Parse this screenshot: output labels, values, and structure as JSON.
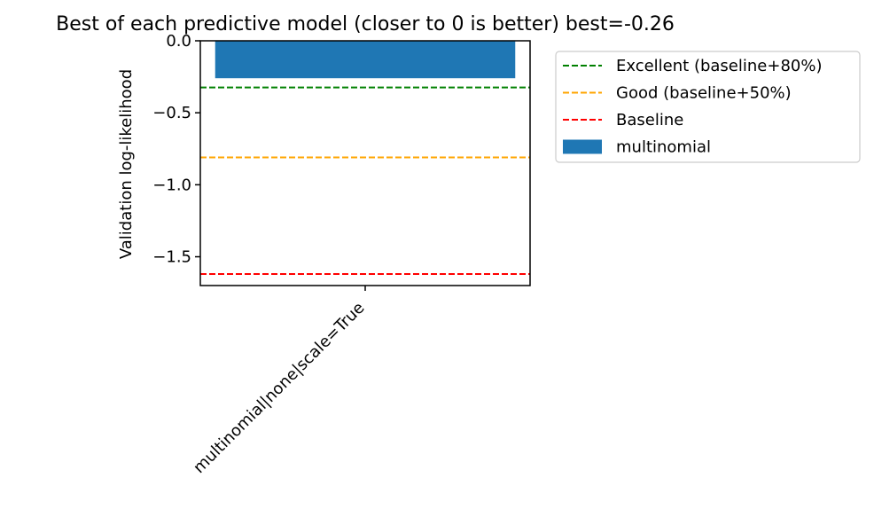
{
  "chart_data": {
    "type": "bar",
    "title": "Best of each predictive model (closer to 0 is better) best=-0.26",
    "xlabel": "",
    "ylabel": "Validation log-likelihood",
    "categories": [
      "multinomial|none|scale=True"
    ],
    "series": [
      {
        "name": "multinomial",
        "values": [
          -0.26
        ],
        "color": "#1f77b4"
      }
    ],
    "reference_lines": [
      {
        "name": "Excellent (baseline+80%)",
        "value": -0.324,
        "color": "#008000",
        "style": "dashed"
      },
      {
        "name": "Good (baseline+50%)",
        "value": -0.81,
        "color": "#ffa500",
        "style": "dashed"
      },
      {
        "name": "Baseline",
        "value": -1.62,
        "color": "#ff0000",
        "style": "dashed"
      }
    ],
    "ylim": [
      -1.7,
      0.0
    ],
    "yticks": [
      {
        "value": 0.0,
        "label": "0.0"
      },
      {
        "value": -0.5,
        "label": "−0.5"
      },
      {
        "value": -1.0,
        "label": "−1.0"
      },
      {
        "value": -1.5,
        "label": "−1.5"
      }
    ],
    "grid": false,
    "legend_position": "outside-right"
  }
}
